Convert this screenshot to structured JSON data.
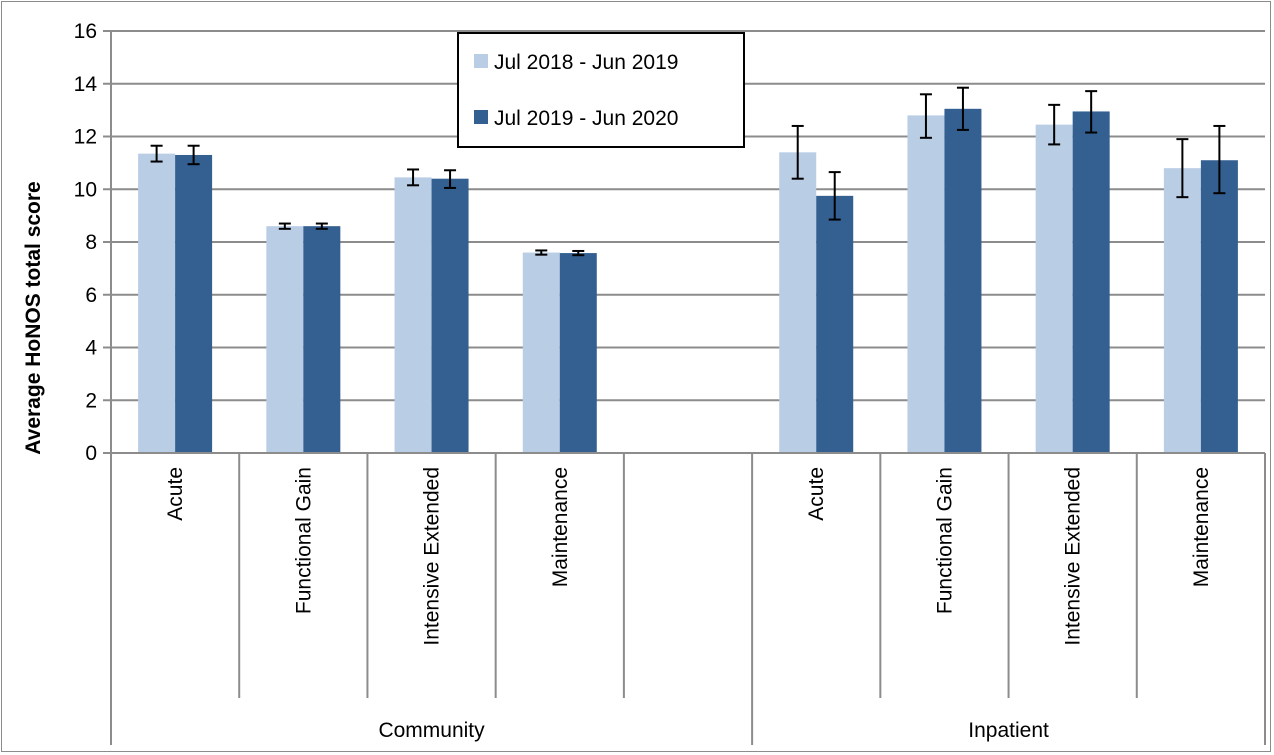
{
  "chart_data": {
    "type": "bar",
    "title": "",
    "xlabel": "",
    "ylabel": "Average HoNOS total score",
    "ylim": [
      0,
      16
    ],
    "yticks": [
      0,
      2,
      4,
      6,
      8,
      10,
      12,
      14,
      16
    ],
    "grid": true,
    "legend_position": "top-center",
    "groups": [
      {
        "name": "Community",
        "categories": [
          "Acute",
          "Functional Gain",
          "Intensive Extended",
          "Maintenance",
          ""
        ]
      },
      {
        "name": "Inpatient",
        "categories": [
          "Acute",
          "Functional Gain",
          "Intensive Extended",
          "Maintenance"
        ]
      }
    ],
    "series": [
      {
        "name": "Jul 2018 - Jun 2019",
        "color": "#b9cde5",
        "values": [
          11.35,
          8.6,
          10.45,
          7.6,
          null,
          11.4,
          12.8,
          12.45,
          10.8
        ],
        "err_low": [
          11.05,
          8.5,
          10.15,
          7.52,
          null,
          10.4,
          11.95,
          11.7,
          9.7
        ],
        "err_high": [
          11.65,
          8.7,
          10.75,
          7.68,
          null,
          12.4,
          13.6,
          13.2,
          11.9
        ]
      },
      {
        "name": "Jul 2019 - Jun 2020",
        "color": "#335f91",
        "values": [
          11.3,
          8.6,
          10.4,
          7.58,
          null,
          9.75,
          13.05,
          12.95,
          11.1
        ],
        "err_low": [
          10.95,
          8.5,
          10.05,
          7.5,
          null,
          8.85,
          12.25,
          12.15,
          9.85
        ],
        "err_high": [
          11.65,
          8.7,
          10.72,
          7.66,
          null,
          10.65,
          13.85,
          13.72,
          12.4
        ]
      }
    ]
  }
}
